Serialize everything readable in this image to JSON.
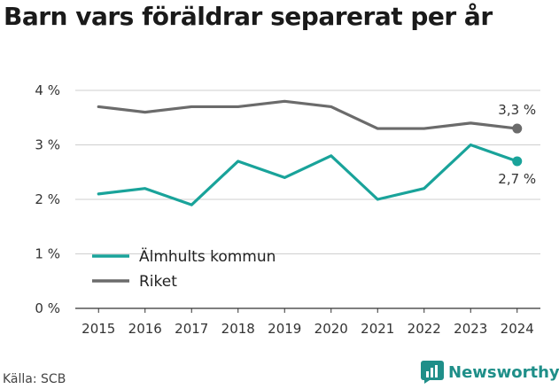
{
  "title": "Barn vars föräldrar separerat per år",
  "source": "Källa: SCB",
  "brand": {
    "name": "Newsworthy",
    "icon": "newsworthy-logo-icon",
    "color": "#1f8f89"
  },
  "chart_data": {
    "type": "line",
    "title": "Barn vars föräldrar separerat per år",
    "x": [
      2015,
      2016,
      2017,
      2018,
      2019,
      2020,
      2021,
      2022,
      2023,
      2024
    ],
    "x_tick_labels": [
      "2015",
      "2016",
      "2017",
      "2018",
      "2019",
      "2020",
      "2021",
      "2022",
      "2023",
      "2024"
    ],
    "y_tick_values": [
      0,
      1,
      2,
      3,
      4
    ],
    "y_tick_labels": [
      "0 %",
      "1 %",
      "2 %",
      "3 %",
      "4 %"
    ],
    "ylim": [
      0,
      4
    ],
    "grid": "horizontal",
    "legend_position": "bottom-left",
    "series": [
      {
        "name": "Älmhults kommun",
        "color": "#19a39a",
        "values": [
          2.1,
          2.2,
          1.9,
          2.7,
          2.4,
          2.8,
          2.0,
          2.2,
          3.0,
          2.7
        ],
        "end_label": "2,7 %"
      },
      {
        "name": "Riket",
        "color": "#6b6b6b",
        "values": [
          3.7,
          3.6,
          3.7,
          3.7,
          3.8,
          3.7,
          3.3,
          3.3,
          3.4,
          3.3
        ],
        "end_label": "3,3 %"
      }
    ]
  }
}
